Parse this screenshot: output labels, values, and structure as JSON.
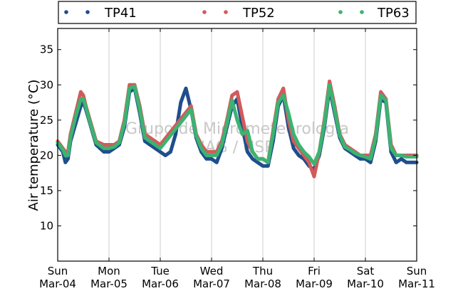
{
  "chart_data": {
    "type": "scatter",
    "title": "",
    "xlabel": "",
    "ylabel": "Air temperature (°C)",
    "watermark": [
      "Grupo de Micrometeorologia",
      "IAG / USP"
    ],
    "x_range": [
      0,
      7
    ],
    "ylim": [
      5,
      38
    ],
    "y_ticks": [
      10,
      15,
      20,
      25,
      30,
      35
    ],
    "x_ticks": [
      {
        "x": 0,
        "weekday": "Sun",
        "date": "Mar-04"
      },
      {
        "x": 1,
        "weekday": "Mon",
        "date": "Mar-05"
      },
      {
        "x": 2,
        "weekday": "Tue",
        "date": "Mar-06"
      },
      {
        "x": 3,
        "weekday": "Wed",
        "date": "Mar-07"
      },
      {
        "x": 4,
        "weekday": "Thu",
        "date": "Mar-08"
      },
      {
        "x": 5,
        "weekday": "Fri",
        "date": "Mar-09"
      },
      {
        "x": 6,
        "weekday": "Sat",
        "date": "Mar-10"
      },
      {
        "x": 7,
        "weekday": "Sun",
        "date": "Mar-11"
      }
    ],
    "grid": "vertical",
    "legend_position": "top",
    "series": [
      {
        "name": "TP41",
        "color": "#1f4e8c",
        "x": [
          0.0,
          0.1,
          0.15,
          0.2,
          0.25,
          0.35,
          0.45,
          0.5,
          0.55,
          0.65,
          0.75,
          0.9,
          1.0,
          1.1,
          1.2,
          1.3,
          1.4,
          1.5,
          1.6,
          1.7,
          1.8,
          1.9,
          2.0,
          2.1,
          2.2,
          2.3,
          2.4,
          2.5,
          2.6,
          2.7,
          2.8,
          2.9,
          3.0,
          3.1,
          3.2,
          3.3,
          3.4,
          3.5,
          3.6,
          3.7,
          3.8,
          3.9,
          4.0,
          4.1,
          4.2,
          4.3,
          4.4,
          4.5,
          4.6,
          4.7,
          4.8,
          4.9,
          5.0,
          5.1,
          5.2,
          5.3,
          5.4,
          5.5,
          5.6,
          5.7,
          5.8,
          5.9,
          6.0,
          6.1,
          6.2,
          6.3,
          6.4,
          6.5,
          6.6,
          6.7,
          6.8,
          6.9,
          7.0
        ],
        "values": [
          21.5,
          20.5,
          19.0,
          19.5,
          22.0,
          24.5,
          27.0,
          27.5,
          26.5,
          24.0,
          21.5,
          20.5,
          20.5,
          21.0,
          21.5,
          24.0,
          29.0,
          29.5,
          26.0,
          22.0,
          21.5,
          21.0,
          20.5,
          20.0,
          20.5,
          23.0,
          27.5,
          29.5,
          26.5,
          22.5,
          20.5,
          19.5,
          19.5,
          19.0,
          21.0,
          24.0,
          27.0,
          28.0,
          24.0,
          20.5,
          19.5,
          19.0,
          18.5,
          18.5,
          22.0,
          27.0,
          28.5,
          24.0,
          21.0,
          20.0,
          19.5,
          18.5,
          18.0,
          20.0,
          24.0,
          29.5,
          26.0,
          22.5,
          21.0,
          20.5,
          20.0,
          19.5,
          19.5,
          19.0,
          22.0,
          28.0,
          27.5,
          20.5,
          19.0,
          19.5,
          19.0,
          19.0,
          19.0
        ]
      },
      {
        "name": "TP52",
        "color": "#d15b5b",
        "x": [
          0.0,
          0.1,
          0.15,
          0.2,
          0.25,
          0.35,
          0.45,
          0.5,
          0.55,
          0.65,
          0.75,
          0.9,
          1.0,
          1.1,
          1.2,
          1.3,
          1.4,
          1.5,
          1.6,
          1.7,
          1.8,
          1.9,
          2.0,
          2.6,
          2.7,
          2.8,
          2.9,
          3.0,
          3.1,
          3.2,
          3.3,
          3.4,
          3.5,
          3.6,
          3.7,
          3.8,
          3.9,
          4.0,
          4.1,
          4.2,
          4.3,
          4.4,
          4.5,
          4.6,
          4.7,
          4.8,
          4.9,
          5.0,
          5.1,
          5.2,
          5.3,
          5.4,
          5.5,
          5.6,
          5.7,
          5.8,
          5.9,
          6.0,
          6.1,
          6.2,
          6.3,
          6.4,
          6.5,
          6.6,
          6.7,
          6.8,
          6.9,
          7.0
        ],
        "values": [
          22.0,
          21.0,
          20.5,
          20.5,
          23.0,
          26.0,
          29.0,
          28.5,
          27.0,
          24.5,
          22.0,
          21.5,
          21.5,
          21.5,
          22.0,
          25.0,
          30.0,
          30.0,
          27.0,
          23.0,
          22.5,
          22.0,
          21.5,
          27.0,
          23.0,
          21.5,
          20.5,
          20.5,
          20.5,
          22.0,
          25.0,
          28.5,
          29.0,
          25.5,
          22.0,
          20.5,
          19.5,
          19.5,
          19.0,
          23.5,
          28.0,
          29.5,
          25.0,
          22.0,
          21.0,
          20.0,
          19.0,
          17.0,
          20.5,
          25.0,
          30.5,
          27.0,
          23.0,
          21.5,
          21.0,
          20.5,
          20.0,
          20.0,
          20.0,
          23.0,
          29.0,
          28.0,
          21.5,
          20.0,
          20.0,
          20.0,
          20.0,
          20.0
        ]
      },
      {
        "name": "TP63",
        "color": "#3cb371",
        "x": [
          0.0,
          0.1,
          0.15,
          0.2,
          0.25,
          0.35,
          0.45,
          0.5,
          0.55,
          0.65,
          0.75,
          0.9,
          1.0,
          1.1,
          1.2,
          1.3,
          1.4,
          1.5,
          1.6,
          1.7,
          1.8,
          1.9,
          2.0,
          2.6,
          2.7,
          2.8,
          2.9,
          3.0,
          3.1,
          3.2,
          3.3,
          3.4,
          3.5,
          3.6,
          3.7,
          3.8,
          3.9,
          4.0,
          4.1,
          4.2,
          4.3,
          4.4,
          4.5,
          4.6,
          4.7,
          4.8,
          4.9,
          5.0,
          5.1,
          5.2,
          5.3,
          5.4,
          5.5,
          5.6,
          5.7,
          5.8,
          5.9,
          6.0,
          6.1,
          6.2,
          6.3,
          6.4,
          6.5,
          6.6,
          6.7,
          6.8,
          6.9,
          7.0
        ],
        "values": [
          21.8,
          20.8,
          20.0,
          20.0,
          22.5,
          25.5,
          28.0,
          28.0,
          26.8,
          24.2,
          21.8,
          21.0,
          21.0,
          21.2,
          21.8,
          24.5,
          29.5,
          29.8,
          26.5,
          22.5,
          22.0,
          21.5,
          21.0,
          26.5,
          22.8,
          21.0,
          20.0,
          20.0,
          20.0,
          21.5,
          24.5,
          27.8,
          25.0,
          23.0,
          23.5,
          20.5,
          19.5,
          19.5,
          19.0,
          23.0,
          27.5,
          28.5,
          26.0,
          23.0,
          21.5,
          20.5,
          19.8,
          18.8,
          20.5,
          24.5,
          30.0,
          26.5,
          22.8,
          21.2,
          20.8,
          20.3,
          20.0,
          19.8,
          19.5,
          22.5,
          28.5,
          27.8,
          21.0,
          20.0,
          20.0,
          19.8,
          19.8,
          19.8
        ]
      }
    ]
  }
}
